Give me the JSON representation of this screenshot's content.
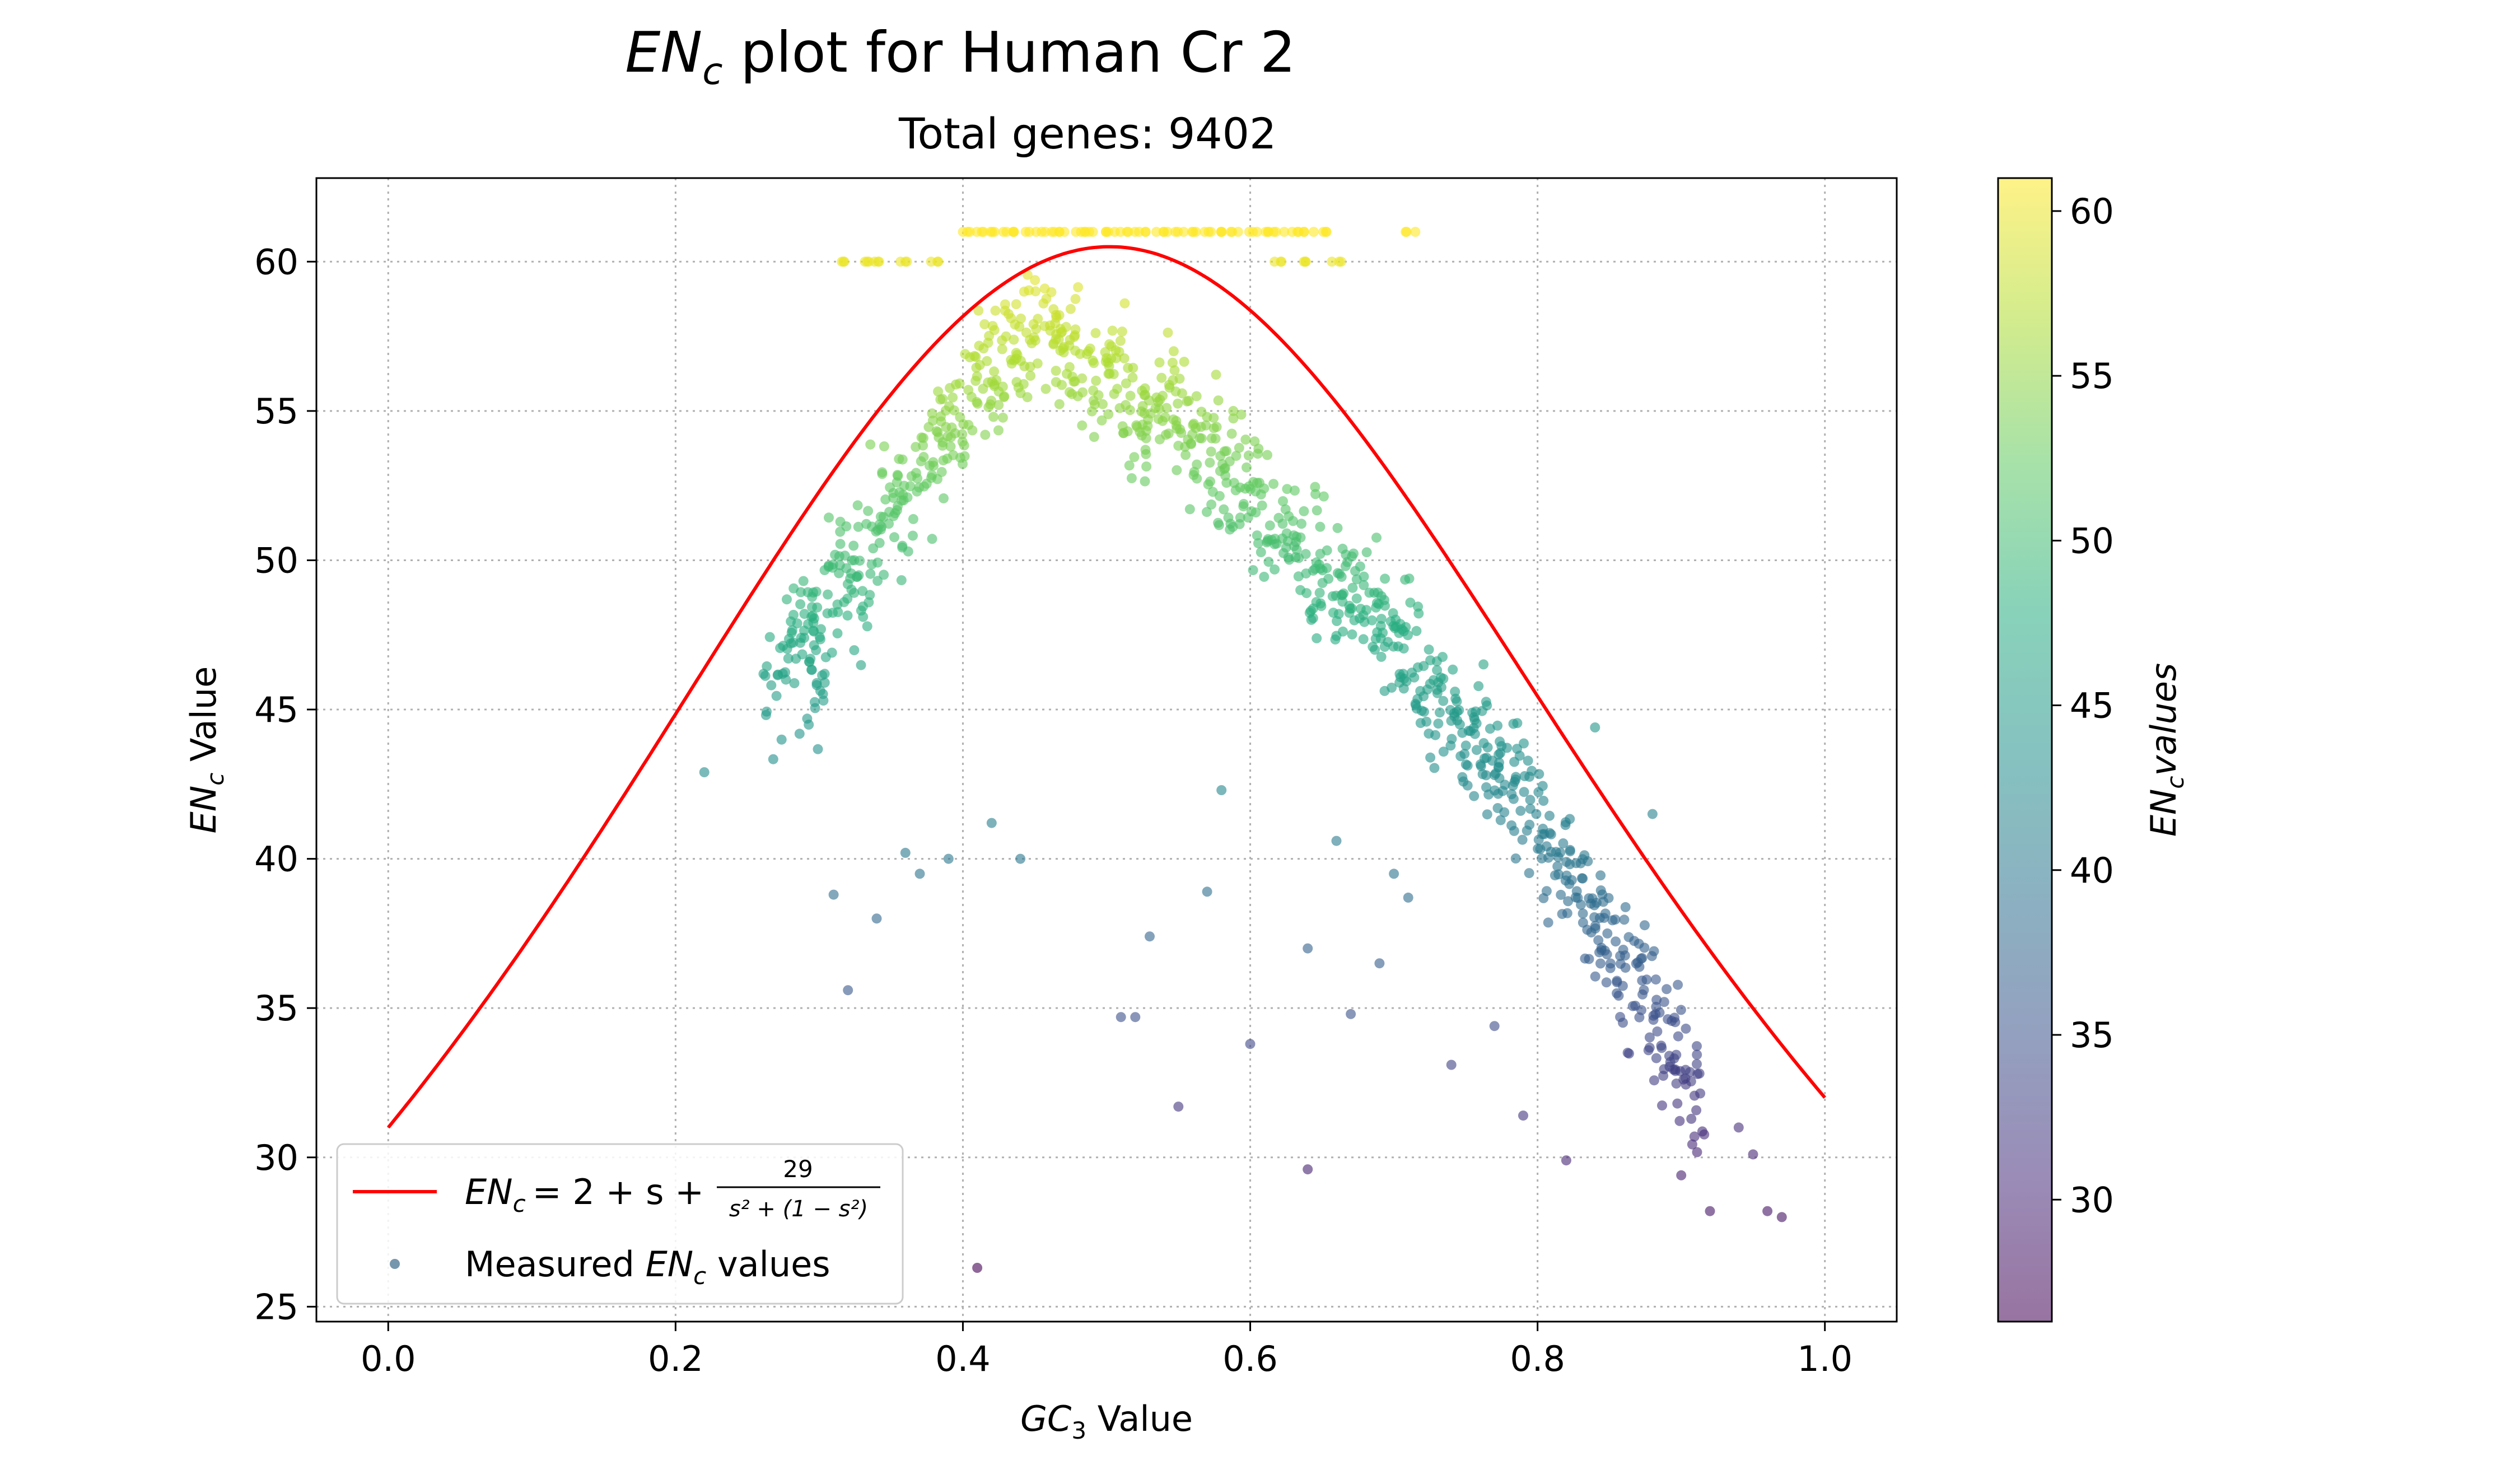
{
  "chart_data": {
    "type": "scatter",
    "title": {
      "main_italic": "EN",
      "main_sub": "c",
      "main_rest": " plot for Human Cr 2"
    },
    "subtitle": "Total genes: 9402",
    "xlabel": {
      "italic": "GC",
      "sub": "3",
      "rest": " Value"
    },
    "ylabel": {
      "italic": "EN",
      "sub": "c",
      "rest": " Value"
    },
    "xlim": [
      -0.05,
      1.05
    ],
    "ylim": [
      24.5,
      62.8
    ],
    "xticks": [
      "0.0",
      "0.2",
      "0.4",
      "0.6",
      "0.8",
      "1.0"
    ],
    "yticks": [
      "25",
      "30",
      "35",
      "40",
      "45",
      "50",
      "55",
      "60"
    ],
    "grid": true,
    "legend_position": "lower-left",
    "curve": {
      "color": "#ff0000",
      "legend": {
        "italic": "EN",
        "sub": "c",
        "formula": "= 2 + s + ",
        "num": "29",
        "den": "s² + (1 − s²)"
      }
    },
    "scatter": {
      "legend": {
        "prefix": "Measured ",
        "italic": "EN",
        "sub": "c",
        "suffix": " values"
      },
      "cloud_points": [
        [
          0.27,
          46
        ],
        [
          0.28,
          47
        ],
        [
          0.29,
          48
        ],
        [
          0.3,
          48
        ],
        [
          0.3,
          46
        ],
        [
          0.31,
          49
        ],
        [
          0.32,
          50
        ],
        [
          0.33,
          49
        ],
        [
          0.34,
          51
        ],
        [
          0.35,
          52
        ],
        [
          0.36,
          52
        ],
        [
          0.37,
          53
        ],
        [
          0.38,
          54
        ],
        [
          0.39,
          54
        ],
        [
          0.4,
          55
        ],
        [
          0.41,
          56
        ],
        [
          0.42,
          56
        ],
        [
          0.43,
          57
        ],
        [
          0.44,
          57
        ],
        [
          0.45,
          57
        ],
        [
          0.46,
          58
        ],
        [
          0.47,
          57
        ],
        [
          0.48,
          57
        ],
        [
          0.49,
          56
        ],
        [
          0.5,
          56
        ],
        [
          0.51,
          56
        ],
        [
          0.52,
          55
        ],
        [
          0.53,
          55
        ],
        [
          0.54,
          55
        ],
        [
          0.55,
          55
        ],
        [
          0.56,
          54
        ],
        [
          0.57,
          54
        ],
        [
          0.58,
          53
        ],
        [
          0.59,
          53
        ],
        [
          0.6,
          52
        ],
        [
          0.61,
          52
        ],
        [
          0.62,
          51
        ],
        [
          0.63,
          51
        ],
        [
          0.64,
          50
        ],
        [
          0.65,
          50
        ],
        [
          0.66,
          49
        ],
        [
          0.67,
          49
        ],
        [
          0.68,
          48
        ],
        [
          0.69,
          48
        ],
        [
          0.7,
          47
        ],
        [
          0.71,
          47
        ],
        [
          0.72,
          46
        ],
        [
          0.73,
          45
        ],
        [
          0.74,
          45
        ],
        [
          0.75,
          44
        ],
        [
          0.76,
          44
        ],
        [
          0.77,
          43
        ],
        [
          0.78,
          43
        ],
        [
          0.79,
          42
        ],
        [
          0.8,
          41
        ],
        [
          0.81,
          40
        ],
        [
          0.82,
          40
        ],
        [
          0.83,
          39
        ],
        [
          0.84,
          38
        ],
        [
          0.85,
          37
        ],
        [
          0.86,
          36
        ],
        [
          0.87,
          36
        ],
        [
          0.88,
          35
        ],
        [
          0.89,
          34
        ],
        [
          0.9,
          33
        ],
        [
          0.91,
          32
        ]
      ],
      "cap_points": [
        [
          0.32,
          60
        ],
        [
          0.33,
          60
        ],
        [
          0.34,
          60
        ],
        [
          0.36,
          60
        ],
        [
          0.38,
          60
        ],
        [
          0.4,
          61
        ],
        [
          0.41,
          61
        ],
        [
          0.42,
          61
        ],
        [
          0.43,
          61
        ],
        [
          0.44,
          61
        ],
        [
          0.45,
          61
        ],
        [
          0.46,
          61
        ],
        [
          0.47,
          61
        ],
        [
          0.48,
          61
        ],
        [
          0.49,
          61
        ],
        [
          0.5,
          61
        ],
        [
          0.51,
          61
        ],
        [
          0.52,
          61
        ],
        [
          0.53,
          61
        ],
        [
          0.54,
          61
        ],
        [
          0.55,
          61
        ],
        [
          0.56,
          61
        ],
        [
          0.57,
          61
        ],
        [
          0.58,
          61
        ],
        [
          0.59,
          61
        ],
        [
          0.6,
          61
        ],
        [
          0.61,
          61
        ],
        [
          0.62,
          61
        ],
        [
          0.63,
          61
        ],
        [
          0.64,
          61
        ],
        [
          0.65,
          61
        ],
        [
          0.71,
          61
        ],
        [
          0.62,
          60
        ],
        [
          0.64,
          60
        ],
        [
          0.66,
          60
        ]
      ],
      "outlier_points": [
        [
          0.22,
          42.9
        ],
        [
          0.31,
          38.8
        ],
        [
          0.32,
          35.6
        ],
        [
          0.34,
          38.0
        ],
        [
          0.36,
          40.2
        ],
        [
          0.37,
          39.5
        ],
        [
          0.39,
          40.0
        ],
        [
          0.42,
          41.2
        ],
        [
          0.44,
          40.0
        ],
        [
          0.41,
          26.3
        ],
        [
          0.51,
          34.7
        ],
        [
          0.52,
          34.7
        ],
        [
          0.53,
          37.4
        ],
        [
          0.55,
          31.7
        ],
        [
          0.57,
          38.9
        ],
        [
          0.58,
          42.3
        ],
        [
          0.6,
          33.8
        ],
        [
          0.64,
          29.6
        ],
        [
          0.64,
          37.0
        ],
        [
          0.67,
          34.8
        ],
        [
          0.69,
          36.5
        ],
        [
          0.71,
          38.7
        ],
        [
          0.74,
          33.1
        ],
        [
          0.77,
          34.4
        ],
        [
          0.79,
          31.4
        ],
        [
          0.82,
          29.9
        ],
        [
          0.84,
          44.4
        ],
        [
          0.92,
          28.2
        ],
        [
          0.95,
          30.1
        ],
        [
          0.97,
          28.0
        ],
        [
          0.96,
          28.2
        ],
        [
          0.94,
          31.0
        ],
        [
          0.9,
          29.4
        ],
        [
          0.88,
          41.5
        ],
        [
          0.7,
          39.5
        ],
        [
          0.66,
          40.6
        ]
      ]
    },
    "colorbar": {
      "range": [
        26.3,
        61.0
      ],
      "ticks": [
        "30",
        "35",
        "40",
        "45",
        "50",
        "55",
        "60"
      ],
      "label": {
        "italic": "EN",
        "sub": "c",
        "rest": "values"
      }
    }
  }
}
